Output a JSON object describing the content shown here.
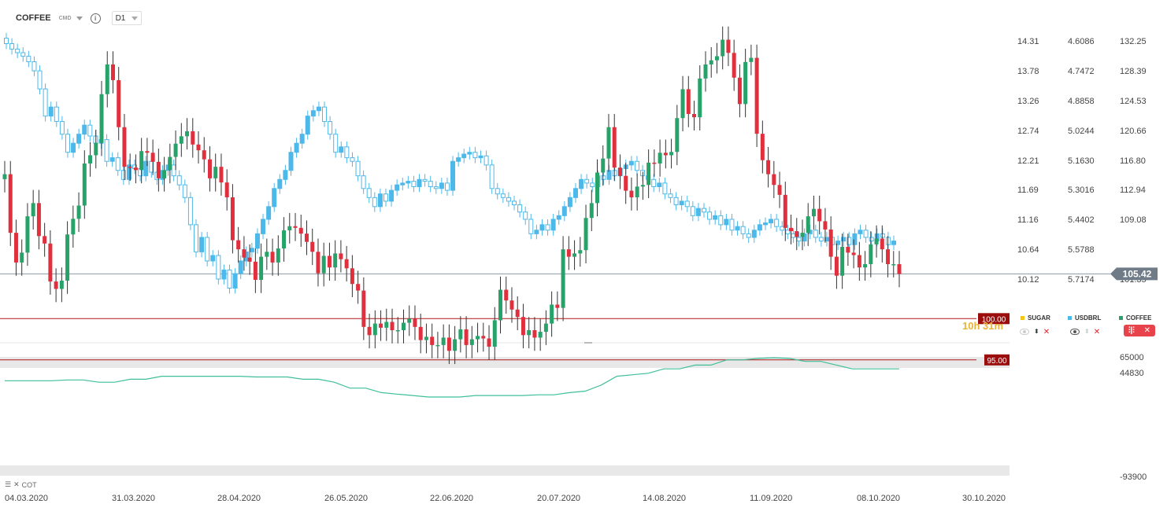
{
  "header": {
    "symbol": "COFFEE",
    "type": "CMD",
    "timeframe": "D1"
  },
  "overlays": [
    {
      "name": "SUGAR",
      "color": "#f5c518",
      "visible": false
    },
    {
      "name": "USDBRL",
      "color": "#4db8ea",
      "visible": true
    },
    {
      "name": "COFFEE",
      "color": "#27a36a",
      "visible": true
    }
  ],
  "indicator_label": "COT",
  "countdown": "10h 31m",
  "chart_data": {
    "type": "candlestick",
    "x_labels": [
      "04.03.2020",
      "31.03.2020",
      "28.04.2020",
      "26.05.2020",
      "22.06.2020",
      "20.07.2020",
      "14.08.2020",
      "11.09.2020",
      "08.10.2020",
      "30.10.2020"
    ],
    "y_axis_coffee": [
      "132.25",
      "128.39",
      "124.53",
      "120.66",
      "116.80",
      "112.94",
      "109.08",
      "105.42",
      "101.35"
    ],
    "y_axis_sugar": [
      "14.31",
      "13.78",
      "13.26",
      "12.74",
      "12.21",
      "11.69",
      "11.16",
      "10.64",
      "10.12"
    ],
    "y_axis_usdbrl": [
      "4.6086",
      "4.7472",
      "4.8858",
      "5.0244",
      "5.1630",
      "5.3016",
      "5.4402",
      "5.5788",
      "5.7174"
    ],
    "coffee_range": [
      98.6,
      134.8
    ],
    "current_price": "105.42",
    "levels": [
      {
        "value": 100.0,
        "label": "100.00"
      },
      {
        "value": 95.0,
        "label": "95.00"
      }
    ],
    "coffee_close": [
      117.5,
      110.4,
      106.8,
      108.0,
      112.4,
      114.0,
      110.0,
      109.1,
      104.5,
      103.6,
      104.6,
      110.2,
      112.1,
      113.7,
      118.8,
      119.8,
      121.3,
      127.2,
      130.8,
      128.9,
      123.2,
      118.4,
      118.3,
      118.0,
      120.3,
      120.1,
      119.0,
      117.0,
      118.0,
      119.6,
      121.2,
      122.1,
      122.7,
      121.1,
      120.4,
      119.3,
      117.0,
      118.4,
      116.5,
      114.7,
      109.5,
      108.4,
      107.4,
      106.9,
      104.7,
      107.5,
      108.1,
      106.8,
      108.5,
      110.7,
      111.2,
      111.0,
      110.3,
      109.3,
      108.1,
      105.5,
      107.6,
      106.2,
      107.9,
      107.2,
      106.1,
      104.2,
      103.4,
      99.0,
      98.0,
      99.4,
      98.9,
      99.6,
      98.6,
      98.6,
      99.5,
      100.0,
      99.0,
      97.4,
      97.8,
      96.8,
      96.8,
      97.7,
      96.1,
      97.5,
      98.7,
      96.8,
      97.5,
      97.9,
      97.6,
      96.6,
      99.8,
      103.5,
      102.2,
      101.1,
      100.2,
      98.0,
      98.6,
      97.7,
      98.4,
      99.4,
      101.7,
      101.3,
      108.4,
      107.5,
      107.9,
      108.3,
      112.2,
      114.0,
      117.7,
      119.4,
      123.2,
      118.3,
      117.3,
      115.5,
      114.7,
      116.0,
      116.2,
      118.9,
      118.8,
      120.1,
      119.8,
      120.2,
      124.3,
      127.8,
      124.8,
      124.4,
      129.1,
      130.8,
      131.3,
      131.8,
      133.8,
      132.2,
      129.2,
      126.0,
      131.1,
      131.6,
      122.4,
      119.2,
      117.5,
      116.2,
      115.0,
      111.0,
      110.6,
      109.9,
      110.4,
      112.4,
      113.3,
      111.8,
      110.8,
      107.5,
      105.2,
      108.7,
      108.0,
      107.7,
      106.2,
      106.6,
      109.0,
      109.7,
      108.4,
      106.6,
      106.6,
      105.4
    ],
    "coffee_open": [
      116.9,
      117.5,
      110.4,
      106.8,
      108.0,
      112.4,
      114.0,
      110.0,
      109.1,
      104.5,
      103.6,
      104.6,
      110.2,
      112.1,
      113.7,
      118.8,
      119.8,
      121.3,
      127.2,
      130.8,
      128.9,
      123.2,
      118.4,
      118.3,
      118.0,
      120.3,
      120.1,
      119.0,
      117.0,
      118.0,
      119.6,
      121.2,
      122.1,
      122.7,
      121.1,
      120.4,
      119.3,
      117.0,
      118.4,
      116.5,
      114.7,
      109.5,
      108.4,
      107.4,
      106.9,
      104.7,
      107.5,
      108.1,
      106.8,
      108.5,
      110.7,
      111.2,
      111.0,
      110.3,
      109.3,
      108.1,
      105.5,
      107.6,
      106.2,
      107.9,
      107.2,
      106.1,
      104.2,
      103.4,
      99.0,
      98.0,
      99.4,
      98.9,
      99.6,
      98.6,
      98.6,
      99.5,
      100.0,
      99.0,
      97.4,
      97.8,
      96.8,
      96.8,
      97.7,
      96.1,
      97.5,
      98.7,
      96.8,
      97.5,
      97.9,
      97.6,
      96.6,
      99.8,
      103.5,
      102.2,
      101.1,
      100.2,
      98.0,
      98.6,
      97.7,
      98.4,
      99.4,
      101.7,
      101.3,
      108.4,
      107.5,
      107.9,
      108.3,
      112.2,
      114.0,
      117.7,
      119.4,
      123.2,
      118.3,
      117.3,
      115.5,
      114.7,
      116.0,
      116.2,
      118.9,
      118.8,
      120.1,
      119.8,
      120.2,
      124.3,
      127.8,
      124.8,
      124.4,
      129.1,
      130.8,
      131.3,
      131.8,
      133.8,
      132.2,
      129.2,
      126.0,
      131.1,
      131.6,
      122.4,
      119.2,
      117.5,
      116.2,
      115.0,
      111.0,
      110.6,
      109.9,
      110.4,
      112.4,
      113.3,
      111.8,
      110.8,
      107.5,
      105.2,
      108.7,
      108.0,
      107.7,
      106.2,
      106.6,
      109.0,
      109.7,
      108.4,
      106.6,
      106.6
    ],
    "usdbrl_close": [
      4.55,
      4.58,
      4.6,
      4.62,
      4.65,
      4.7,
      4.8,
      4.95,
      4.9,
      4.98,
      5.05,
      5.15,
      5.1,
      5.05,
      5.0,
      5.06,
      5.1,
      5.08,
      5.2,
      5.18,
      5.25,
      5.3,
      5.22,
      5.24,
      5.28,
      5.2,
      5.26,
      5.3,
      5.25,
      5.22,
      5.28,
      5.33,
      5.4,
      5.55,
      5.7,
      5.62,
      5.75,
      5.72,
      5.85,
      5.8,
      5.9,
      5.82,
      5.75,
      5.7,
      5.68,
      5.6,
      5.52,
      5.45,
      5.35,
      5.3,
      5.25,
      5.15,
      5.1,
      5.05,
      4.95,
      4.92,
      4.9,
      4.98,
      5.05,
      5.15,
      5.12,
      5.18,
      5.2,
      5.28,
      5.35,
      5.4,
      5.45,
      5.38,
      5.42,
      5.36,
      5.33,
      5.32,
      5.31,
      5.34,
      5.3,
      5.31,
      5.34,
      5.35,
      5.32,
      5.36,
      5.2,
      5.18,
      5.16,
      5.15,
      5.18,
      5.17,
      5.22,
      5.35,
      5.38,
      5.4,
      5.42,
      5.44,
      5.48,
      5.52,
      5.6,
      5.58,
      5.55,
      5.58,
      5.52,
      5.5,
      5.45,
      5.4,
      5.35,
      5.3,
      5.32,
      5.34,
      5.28,
      5.3,
      5.25,
      5.28,
      5.24,
      5.22,
      5.2,
      5.25,
      5.28,
      5.3,
      5.34,
      5.32,
      5.38,
      5.4,
      5.44,
      5.42,
      5.45,
      5.5,
      5.46,
      5.48,
      5.52,
      5.5,
      5.55,
      5.52,
      5.58,
      5.56,
      5.6,
      5.62,
      5.58,
      5.55,
      5.54,
      5.52,
      5.56,
      5.58,
      5.6,
      5.62,
      5.64,
      5.6,
      5.58,
      5.62,
      5.64,
      5.62,
      5.66,
      5.64,
      5.62,
      5.66,
      5.6,
      5.58,
      5.62,
      5.64,
      5.6,
      5.62,
      5.66,
      5.64
    ],
    "cot": {
      "range": [
        -93900,
        65000
      ],
      "ticks": [
        "65000",
        "44830",
        "-93900"
      ],
      "values": [
        34000,
        34000,
        34000,
        34000,
        35000,
        35000,
        32000,
        32000,
        36000,
        36000,
        40000,
        40000,
        40000,
        40000,
        40000,
        40000,
        39000,
        39000,
        39000,
        36000,
        36000,
        32000,
        24000,
        24000,
        18000,
        16000,
        14000,
        12000,
        12000,
        12000,
        14000,
        14000,
        14000,
        14000,
        15000,
        15000,
        18000,
        20000,
        28000,
        40000,
        42000,
        44000,
        50000,
        50000,
        55000,
        55000,
        62000,
        62000,
        64000,
        65000,
        64000,
        60000,
        60000,
        55000,
        50000,
        50000,
        50000,
        50000
      ]
    }
  }
}
